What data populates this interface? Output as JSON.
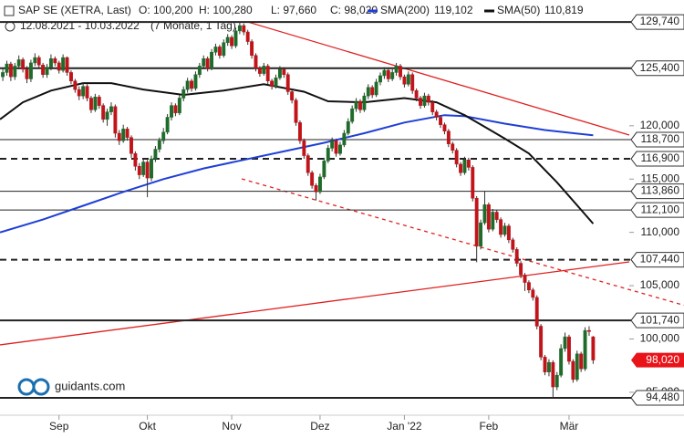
{
  "chart_data": {
    "type": "candlestick",
    "header": {
      "title": "SAP SE (XETRA, Last)",
      "ohlc": [
        "O: 100,200",
        "H: 100,280",
        "L: 97,660",
        "C: 98,020"
      ],
      "range": "12.08.2021 - 10.03.2022",
      "span": "(7 Monate, 1 Tag)"
    },
    "logo": "guidants.com",
    "up_color": "#1f6b2a",
    "down_color": "#c0141a",
    "xlim": [
      -0.7,
      156
    ],
    "ylim": [
      92850,
      131800
    ],
    "xticks": [
      {
        "value": 14,
        "label": "Sep"
      },
      {
        "value": 36,
        "label": "Okt"
      },
      {
        "value": 57,
        "label": "Nov"
      },
      {
        "value": 79,
        "label": "Dez"
      },
      {
        "value": 100,
        "label": "Jan '22"
      },
      {
        "value": 121,
        "label": "Feb"
      },
      {
        "value": 141,
        "label": "Mär"
      }
    ],
    "yticks": [
      {
        "value": 95000,
        "label": "95,000"
      },
      {
        "value": 100000,
        "label": "100,000"
      },
      {
        "value": 105000,
        "label": "105,000"
      },
      {
        "value": 110000,
        "label": "110,000"
      },
      {
        "value": 115000,
        "label": "115,000"
      },
      {
        "value": 120000,
        "label": "120,000"
      }
    ],
    "open": [
      124600,
      125000,
      125800,
      124600,
      125600,
      126200,
      125300,
      124400,
      125900,
      126400,
      125700,
      124800,
      125500,
      126300,
      125900,
      125200,
      126400,
      125000,
      124200,
      123400,
      122800,
      123700,
      122600,
      121500,
      122700,
      121900,
      120600,
      121300,
      121800,
      119300,
      118600,
      119700,
      118900,
      117400,
      116200,
      115400,
      116600,
      115100,
      116900,
      117800,
      118600,
      119400,
      120800,
      121900,
      121200,
      122600,
      123400,
      124200,
      123500,
      124800,
      125600,
      126300,
      125400,
      126900,
      127400,
      126600,
      127800,
      128300,
      127500,
      128900,
      129400,
      128800,
      127900,
      126600,
      125400,
      124900,
      125600,
      124200,
      123700,
      124500,
      125300,
      124800,
      123200,
      122400,
      120300,
      118600,
      117200,
      115600,
      114400,
      113800,
      115200,
      116700,
      117900,
      118600,
      117400,
      118200,
      119300,
      120400,
      121600,
      122300,
      121500,
      122800,
      123600,
      122900,
      124100,
      124700,
      125200,
      124400,
      125000,
      125600,
      124600,
      123900,
      124800,
      123300,
      122600,
      121900,
      122800,
      122200,
      121300,
      120800,
      120100,
      119500,
      118300,
      117700,
      116400,
      115600,
      116800,
      116100,
      113200,
      108700,
      110900,
      112600,
      110300,
      111900,
      111200,
      109800,
      110600,
      109300,
      108400,
      107100,
      106000,
      105300,
      104600,
      103900,
      101200,
      98300,
      96900,
      97800,
      95500,
      96600,
      99100,
      100200,
      97900,
      96200,
      98600,
      97200,
      100800,
      100200
    ],
    "high": [
      125400,
      126100,
      126000,
      125900,
      126600,
      126400,
      125600,
      126200,
      126800,
      126600,
      125900,
      125800,
      126700,
      126500,
      126100,
      126700,
      126500,
      125200,
      124400,
      123700,
      124000,
      123900,
      122800,
      123000,
      122900,
      122100,
      121600,
      122200,
      122000,
      119600,
      120100,
      119900,
      119100,
      117600,
      116500,
      116900,
      116800,
      117200,
      118100,
      118900,
      119800,
      121100,
      122200,
      122100,
      122900,
      123700,
      124500,
      124400,
      125100,
      125900,
      126600,
      126500,
      127200,
      127700,
      127600,
      128100,
      128600,
      128500,
      129200,
      129740,
      129600,
      129000,
      128100,
      126800,
      125600,
      125900,
      125800,
      124400,
      124800,
      125600,
      125500,
      125000,
      123400,
      122600,
      120500,
      118800,
      117400,
      115800,
      114600,
      115500,
      117000,
      118200,
      118900,
      118800,
      118500,
      119600,
      120700,
      121900,
      122600,
      122500,
      123100,
      123900,
      123800,
      124400,
      125000,
      125500,
      125400,
      125300,
      125900,
      125800,
      124800,
      125100,
      125000,
      123500,
      122800,
      123100,
      123000,
      122400,
      121500,
      121000,
      120300,
      119700,
      118500,
      117900,
      116600,
      117100,
      117000,
      116300,
      113400,
      111200,
      113900,
      112800,
      112200,
      112100,
      111400,
      110900,
      110800,
      109500,
      108600,
      107300,
      106200,
      105500,
      104800,
      104100,
      101400,
      98500,
      98100,
      98000,
      96900,
      99500,
      100600,
      100400,
      98100,
      98900,
      98800,
      101100,
      101200,
      100280
    ],
    "low": [
      124200,
      124700,
      124200,
      124300,
      125300,
      125000,
      124000,
      124100,
      125600,
      125400,
      124500,
      124500,
      125200,
      125600,
      124900,
      125000,
      124700,
      123900,
      123100,
      122400,
      122500,
      122300,
      121200,
      121300,
      121600,
      120300,
      120000,
      121000,
      118900,
      118200,
      118400,
      118600,
      117000,
      115800,
      115000,
      115200,
      113300,
      114800,
      116600,
      117500,
      118300,
      119200,
      120500,
      120900,
      121000,
      122300,
      123100,
      123200,
      123300,
      124500,
      125300,
      125100,
      125200,
      126600,
      126300,
      126400,
      127500,
      127200,
      127300,
      128600,
      128500,
      127600,
      126300,
      125100,
      124600,
      124700,
      123900,
      123400,
      123500,
      124300,
      124500,
      122900,
      122100,
      120000,
      118300,
      116900,
      115300,
      114100,
      113000,
      113600,
      115000,
      116500,
      117600,
      117100,
      117200,
      118000,
      119100,
      120200,
      121300,
      121200,
      121300,
      122500,
      122600,
      122700,
      123800,
      124400,
      124100,
      124200,
      124700,
      124300,
      123600,
      123700,
      123000,
      122300,
      121600,
      121700,
      121900,
      121000,
      120500,
      119800,
      119200,
      118000,
      117400,
      116100,
      115300,
      115400,
      115800,
      112900,
      107200,
      108400,
      110700,
      110000,
      110100,
      110900,
      109500,
      109600,
      109000,
      108100,
      106800,
      105700,
      104500,
      104300,
      103600,
      100900,
      98000,
      96600,
      96500,
      94480,
      95200,
      96400,
      98800,
      97600,
      95900,
      96000,
      96900,
      97000,
      100300,
      97660
    ],
    "close": [
      125000,
      125800,
      124600,
      125600,
      126200,
      125300,
      124400,
      125900,
      126400,
      125700,
      124800,
      125500,
      126300,
      125900,
      125200,
      126400,
      125000,
      124200,
      123400,
      122800,
      123700,
      122600,
      121500,
      122700,
      121900,
      120600,
      121300,
      121800,
      119300,
      118600,
      119700,
      118900,
      117400,
      116200,
      115400,
      116600,
      115100,
      116900,
      117800,
      118600,
      119400,
      120800,
      121900,
      121200,
      122600,
      123400,
      124200,
      123500,
      124800,
      125600,
      126300,
      125400,
      126900,
      127400,
      126600,
      127800,
      128300,
      127500,
      128900,
      129400,
      128800,
      127900,
      126600,
      125400,
      124900,
      125600,
      124200,
      123700,
      124500,
      125300,
      124800,
      123200,
      122400,
      120300,
      118600,
      117200,
      115600,
      114400,
      113800,
      115200,
      116700,
      117900,
      118600,
      117400,
      118200,
      119300,
      120400,
      121600,
      122300,
      121500,
      122800,
      123600,
      122900,
      124100,
      124700,
      125200,
      124400,
      125000,
      125600,
      124600,
      123900,
      124800,
      123300,
      122600,
      121900,
      122800,
      122200,
      121300,
      120800,
      120100,
      119500,
      118300,
      117700,
      116400,
      115600,
      116800,
      116100,
      113200,
      108700,
      110900,
      112600,
      110300,
      111900,
      111200,
      109800,
      110600,
      109300,
      108400,
      107100,
      106000,
      105300,
      104600,
      103900,
      101200,
      98300,
      96900,
      97800,
      95500,
      96600,
      99100,
      100200,
      97900,
      96200,
      98600,
      97200,
      100800,
      100700,
      98020
    ],
    "last_price": {
      "value": 98020,
      "label": "98,020"
    },
    "series": [
      {
        "name": "SMA(200)",
        "color": "#1f3fd6",
        "value_label": "119,102",
        "x": [
          -0.7,
          10,
          20,
          30,
          40,
          50,
          60,
          70,
          80,
          90,
          100,
          110,
          115,
          125,
          135,
          147
        ],
        "values": [
          110000,
          111200,
          112500,
          113800,
          115000,
          116000,
          116800,
          117600,
          118400,
          119300,
          120300,
          121000,
          120900,
          120200,
          119600,
          119102
        ]
      },
      {
        "name": "SMA(50)",
        "color": "#111111",
        "value_label": "110,819",
        "x": [
          -0.7,
          5,
          12,
          20,
          27,
          35,
          45,
          55,
          65,
          75,
          81,
          90,
          100,
          108,
          115,
          120,
          125,
          131,
          138,
          147
        ],
        "values": [
          120600,
          122200,
          123300,
          124000,
          124000,
          123400,
          122900,
          123300,
          123900,
          123200,
          122300,
          122200,
          122600,
          122200,
          121000,
          119900,
          118800,
          117400,
          114700,
          110819
        ]
      }
    ],
    "levels": [
      {
        "value": 129740,
        "label": "129,740",
        "dashed": false,
        "width": 2
      },
      {
        "value": 125400,
        "label": "125,400",
        "dashed": false,
        "width": 2
      },
      {
        "value": 118700,
        "label": "118,700",
        "dashed": false,
        "width": 1
      },
      {
        "value": 116900,
        "label": "116,900",
        "dashed": true,
        "width": 2
      },
      {
        "value": 113860,
        "label": "113,860",
        "dashed": false,
        "width": 1
      },
      {
        "value": 112100,
        "label": "112,100",
        "dashed": false,
        "width": 1
      },
      {
        "value": 107440,
        "label": "107,440",
        "dashed": true,
        "width": 2
      },
      {
        "value": 101740,
        "label": "101,740",
        "dashed": false,
        "width": 2
      },
      {
        "value": 94480,
        "label": "94,480",
        "dashed": false,
        "width": 2
      }
    ],
    "trendlines": [
      {
        "color": "#e02020",
        "dashed": false,
        "x": [
          61,
          156
        ],
        "values": [
          129740,
          119128
        ]
      },
      {
        "color": "#e02020",
        "dashed": false,
        "x": [
          -0.7,
          156
        ],
        "values": [
          99445,
          107233
        ]
      },
      {
        "color": "#e02020",
        "dashed": true,
        "x": [
          59.5,
          170
        ],
        "values": [
          115020,
          103125
        ]
      }
    ]
  }
}
